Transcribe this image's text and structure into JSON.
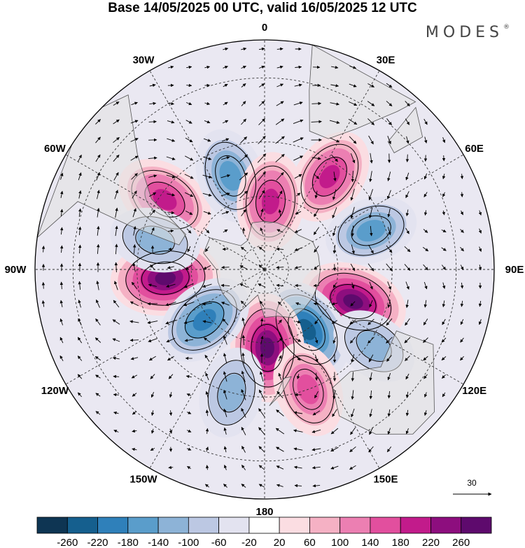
{
  "header": {
    "title": "Base 14/05/2025 00 UTC, valid 16/05/2025 12 UTC",
    "brand": "MODES",
    "brand_mark": "®"
  },
  "map": {
    "projection": "polar-stereographic-south",
    "longitude_labels": [
      {
        "text": "0",
        "lon": 0
      },
      {
        "text": "30E",
        "lon": 30
      },
      {
        "text": "60E",
        "lon": 60
      },
      {
        "text": "90E",
        "lon": 90
      },
      {
        "text": "120E",
        "lon": 120
      },
      {
        "text": "150E",
        "lon": 150
      },
      {
        "text": "180",
        "lon": 180
      },
      {
        "text": "150W",
        "lon": -150
      },
      {
        "text": "120W",
        "lon": -120
      },
      {
        "text": "90W",
        "lon": -90
      },
      {
        "text": "60W",
        "lon": -60
      },
      {
        "text": "30W",
        "lon": -30
      }
    ],
    "anomaly_centers": [
      {
        "lon": -55,
        "lat": -42,
        "value": 200
      },
      {
        "lon": -20,
        "lat": -50,
        "value": -160
      },
      {
        "lon": 35,
        "lat": -45,
        "value": 180
      },
      {
        "lon": 5,
        "lat": -62,
        "value": 180
      },
      {
        "lon": 70,
        "lat": -45,
        "value": -140
      },
      {
        "lon": 110,
        "lat": -52,
        "value": 260
      },
      {
        "lon": 145,
        "lat": -60,
        "value": -240
      },
      {
        "lon": 178,
        "lat": -58,
        "value": 260
      },
      {
        "lon": -95,
        "lat": -50,
        "value": 270
      },
      {
        "lon": -130,
        "lat": -58,
        "value": -200
      },
      {
        "lon": -75,
        "lat": -45,
        "value": -120
      },
      {
        "lon": -165,
        "lat": -40,
        "value": -120
      },
      {
        "lon": 160,
        "lat": -40,
        "value": 160
      },
      {
        "lon": 125,
        "lat": -38,
        "value": -100
      }
    ],
    "vector_reference": {
      "value": "30"
    }
  },
  "colorbar": {
    "labels": [
      "-260",
      "-220",
      "-180",
      "-140",
      "-100",
      "-60",
      "-20",
      "20",
      "60",
      "100",
      "140",
      "180",
      "220",
      "260"
    ],
    "colors": [
      "#0e3553",
      "#155f8e",
      "#2f80ba",
      "#5a9dcb",
      "#8db3d7",
      "#bcc8e3",
      "#e3e3f0",
      "#ffffff",
      "#fbdde2",
      "#f5b1c4",
      "#ec7fb2",
      "#e24f9e",
      "#c21b8b",
      "#8d0e7e",
      "#5e0a6d"
    ]
  }
}
